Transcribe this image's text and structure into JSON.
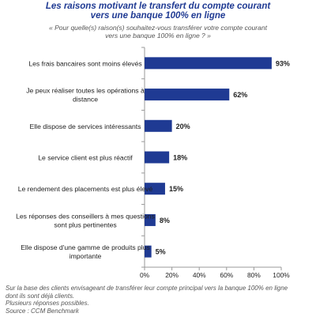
{
  "header": {
    "title_lines": [
      "Les raisons motivant le transfert du compte courant",
      "vers une banque 100% en ligne"
    ],
    "question_lines": [
      "« Pour quelle(s) raison(s) souhaitez-vous transférer votre compte courant",
      "vers une banque 100% en ligne ? »"
    ]
  },
  "chart_data": {
    "type": "bar",
    "orientation": "horizontal",
    "categories": [
      [
        "Les frais bancaires sont moins élevés"
      ],
      [
        "Je peux réaliser toutes les opérations à",
        "distance"
      ],
      [
        "Elle dispose de services intéressants"
      ],
      [
        "Le service client est plus réactif"
      ],
      [
        "Le rendement des placements est plus élevé"
      ],
      [
        "Les réponses des conseillers à mes questions",
        "sont plus pertinentes"
      ],
      [
        "Elle dispose d'une gamme de produits plus",
        "importante"
      ]
    ],
    "values": [
      93,
      62,
      20,
      18,
      15,
      8,
      5
    ],
    "data_labels": [
      "93%",
      "62%",
      "20%",
      "18%",
      "15%",
      "8%",
      "5%"
    ],
    "xlim": [
      0,
      100
    ],
    "x_ticks": [
      0,
      20,
      40,
      60,
      80,
      100
    ],
    "x_tick_labels": [
      "0%",
      "20%",
      "40%",
      "60%",
      "80%",
      "100%"
    ],
    "grid": false,
    "legend": "none",
    "bar_color": "#1f3a93"
  },
  "footnote": {
    "lines": [
      "Sur la base des clients envisageant de transférer leur compte principal vers la banque 100% en ligne",
      "dont ils sont déjà clients.",
      "Plusieurs réponses possibles.",
      "Source : CCM Benchmark"
    ]
  }
}
